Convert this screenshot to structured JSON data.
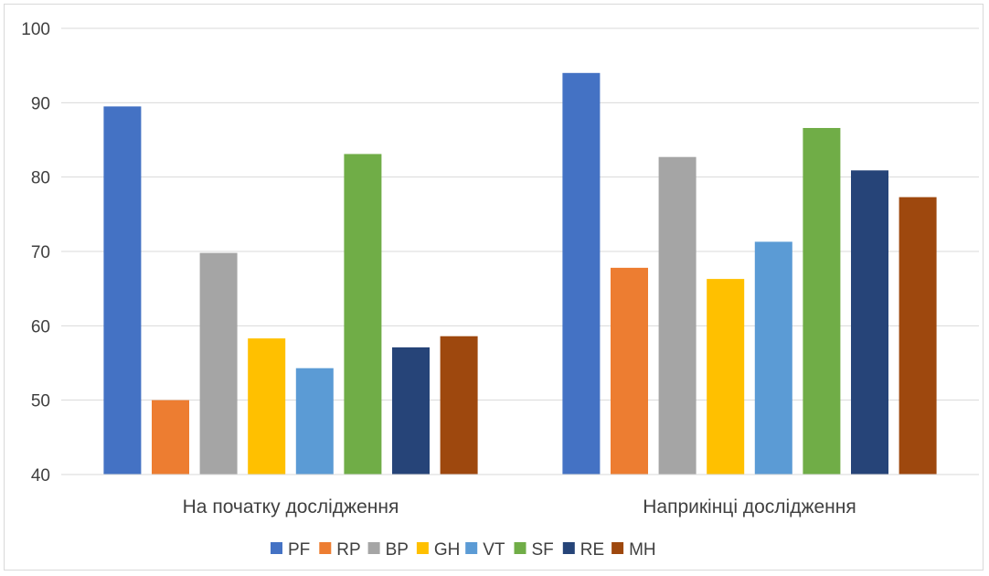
{
  "chart_data": {
    "type": "bar",
    "categories": [
      "На початку дослідження",
      "Наприкінці дослідження"
    ],
    "series": [
      {
        "name": "PF",
        "color": "#4472C4",
        "values": [
          89.5,
          94.0
        ]
      },
      {
        "name": "RP",
        "color": "#ED7D31",
        "values": [
          50.0,
          67.8
        ]
      },
      {
        "name": "BP",
        "color": "#A5A5A5",
        "values": [
          69.8,
          82.7
        ]
      },
      {
        "name": "GH",
        "color": "#FFC000",
        "values": [
          58.3,
          66.3
        ]
      },
      {
        "name": "VT",
        "color": "#5B9BD5",
        "values": [
          54.3,
          71.3
        ]
      },
      {
        "name": "SF",
        "color": "#70AD47",
        "values": [
          83.1,
          86.6
        ]
      },
      {
        "name": "RE",
        "color": "#264478",
        "values": [
          57.1,
          80.9
        ]
      },
      {
        "name": "MH",
        "color": "#9E480E",
        "values": [
          58.6,
          77.3
        ]
      }
    ],
    "ylim": [
      40,
      100
    ],
    "yticks": [
      40,
      50,
      60,
      70,
      80,
      90,
      100
    ],
    "grid": true,
    "legend": "bottom",
    "title": "",
    "xlabel": "",
    "ylabel": ""
  }
}
